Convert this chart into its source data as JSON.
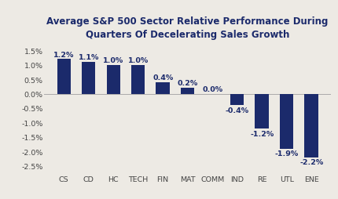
{
  "categories": [
    "CS",
    "CD",
    "HC",
    "TECH",
    "FIN",
    "MAT",
    "COMM",
    "IND",
    "RE",
    "UTL",
    "ENE"
  ],
  "values": [
    1.2,
    1.1,
    1.0,
    1.0,
    0.4,
    0.2,
    0.0,
    -0.4,
    -1.2,
    -1.9,
    -2.2
  ],
  "bar_color": "#1b2a6b",
  "title_line1": "Average S&P 500 Sector Relative Performance During",
  "title_line2": "Quarters Of Decelerating Sales Growth",
  "ylim": [
    -2.75,
    1.75
  ],
  "yticks": [
    -2.5,
    -2.0,
    -1.5,
    -1.0,
    -0.5,
    0.0,
    0.5,
    1.0,
    1.5
  ],
  "background_color": "#edeae4",
  "title_fontsize": 8.5,
  "label_fontsize": 6.8,
  "tick_fontsize": 6.8,
  "bar_width": 0.55
}
